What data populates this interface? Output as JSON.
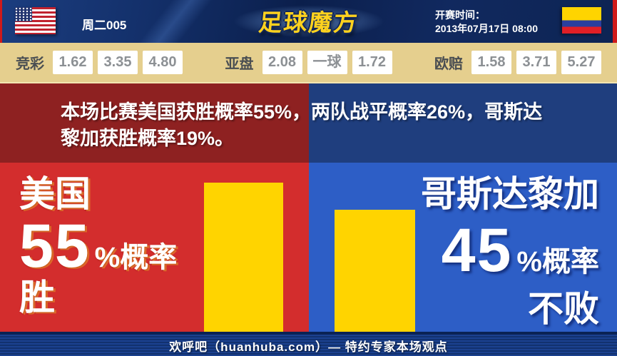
{
  "header": {
    "match_label": "周二005",
    "logo_text": "足球魔方",
    "kickoff_label": "开赛时间：",
    "kickoff_time": "2013年07月17日 08:00",
    "home_flag_icon": "us-flag",
    "away_flag_icon": "colombia-flag"
  },
  "odds": {
    "groups": [
      {
        "label": "竞彩",
        "values": [
          "1.62",
          "3.35",
          "4.80"
        ]
      },
      {
        "label": "亚盘",
        "values": [
          "2.08",
          "一球",
          "1.72"
        ]
      },
      {
        "label": "欧赔",
        "values": [
          "1.58",
          "3.71",
          "5.27"
        ]
      }
    ]
  },
  "banner": {
    "summary": "本场比赛美国获胜概率55%，两队战平概率26%，哥斯达\n黎加获胜概率19%。"
  },
  "panels": {
    "home": {
      "team": "美国",
      "percent": "55",
      "percent_suffix": "%概率",
      "outcome": "胜"
    },
    "away": {
      "team": "哥斯达黎加",
      "percent": "45",
      "percent_suffix": "%概率",
      "outcome": "不败"
    }
  },
  "footer": {
    "text": "欢呼吧（huanhuba.com）— 特约专家本场观点"
  },
  "colors": {
    "home_red": "#d32d2d",
    "away_blue": "#2d5ec6",
    "banner_red": "#8e2121",
    "banner_navy": "#1f3e7e",
    "bar_yellow": "#ffd400",
    "odds_bar_bg": "#e5cf8e",
    "header_navy": "#0d2453",
    "footer_navy": "#12316f",
    "logo_gold": "#ffd21e"
  },
  "chart_data": {
    "type": "bar",
    "categories": [
      "美国",
      "哥斯达黎加"
    ],
    "values": [
      55,
      45
    ],
    "unit": "%",
    "bar_color": "#ffd400",
    "labels": [
      "美国 55%概率 胜",
      "哥斯达黎加 45%概率 不败"
    ],
    "ylim": [
      0,
      62
    ],
    "legend": "none",
    "grid": false
  }
}
